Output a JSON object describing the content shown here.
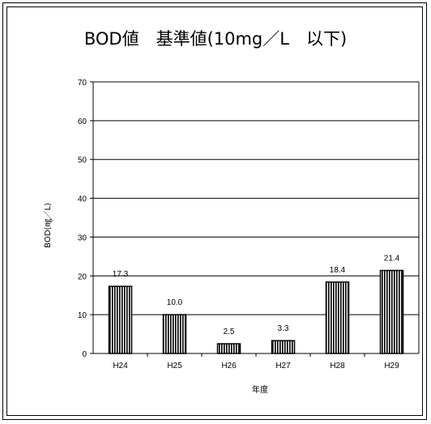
{
  "chart_data": {
    "type": "bar",
    "title": "BOD値　基準値(10mg／L　以下)",
    "xlabel": "年度",
    "ylabel": "BOD(㎎／L)",
    "categories": [
      "H24",
      "H25",
      "H26",
      "H27",
      "H28",
      "H29"
    ],
    "values": [
      17.3,
      10.0,
      2.5,
      3.3,
      18.4,
      21.4
    ],
    "data_labels": [
      "17.3",
      "10.0",
      "2.5",
      "3.3",
      "18.4",
      "21.4"
    ],
    "ylim": [
      0,
      70
    ],
    "yticks": [
      0,
      10,
      20,
      30,
      40,
      50,
      60,
      70
    ],
    "grid": true,
    "legend": "none",
    "bar_fill": "vertical-stripes",
    "colors": {
      "stroke": "#000000",
      "background": "#ffffff"
    }
  }
}
